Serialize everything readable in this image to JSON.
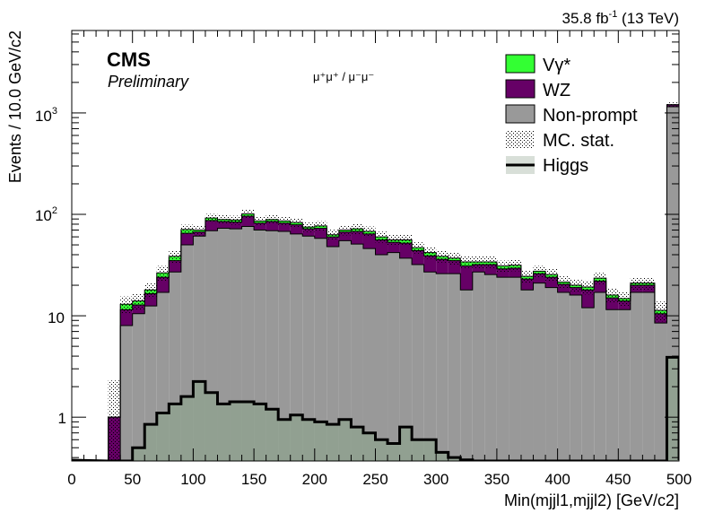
{
  "header": {
    "lumi_value": "35.8 fb",
    "lumi_exp": "-1",
    "energy": "(13 TeV)",
    "experiment": "CMS",
    "status": "Preliminary",
    "channel": "μ⁺μ⁺ /  μ⁻μ⁻"
  },
  "colors": {
    "vgamma": "#33ff33",
    "wz": "#660066",
    "nonprompt": "#999999",
    "higgs_fill": "#8fa38f",
    "higgs_line": "#000000",
    "frame": "#000000"
  },
  "chart_data": {
    "type": "bar",
    "stacked": true,
    "log_y": true,
    "xlabel": "Min(mjjl1,mjjl2) [GeV/c2]",
    "ylabel": "Events / 10.0 GeV/c2",
    "xlim": [
      0,
      500
    ],
    "ylim": [
      0.37,
      6500
    ],
    "bin_width": 10,
    "x_ticks": [
      "0",
      "50",
      "100",
      "150",
      "200",
      "250",
      "300",
      "350",
      "400",
      "450",
      "500"
    ],
    "y_ticks": [
      {
        "base": "1",
        "exp": ""
      },
      {
        "base": "10",
        "exp": ""
      },
      {
        "base": "10",
        "exp": "2"
      },
      {
        "base": "10",
        "exp": "3"
      }
    ],
    "legend_position": "top-right",
    "legend": [
      {
        "label": "Vγ*",
        "kind": "fill",
        "color_key": "vgamma"
      },
      {
        "label": "WZ",
        "kind": "fill",
        "color_key": "wz"
      },
      {
        "label": "Non-prompt",
        "kind": "fill",
        "color_key": "nonprompt"
      },
      {
        "label": "MC. stat.",
        "kind": "hatch",
        "color_key": "frame"
      },
      {
        "label": "Higgs",
        "kind": "line",
        "color_key": "higgs_line"
      }
    ],
    "bins_low": [
      30,
      40,
      50,
      60,
      70,
      80,
      90,
      100,
      110,
      120,
      130,
      140,
      150,
      160,
      170,
      180,
      190,
      200,
      210,
      220,
      230,
      240,
      250,
      260,
      270,
      280,
      290,
      300,
      310,
      320,
      330,
      340,
      350,
      360,
      370,
      380,
      390,
      400,
      410,
      420,
      430,
      440,
      450,
      460,
      470,
      480,
      490
    ],
    "series": [
      {
        "name": "Non-prompt",
        "values": [
          0.3,
          8.0,
          10.5,
          12.5,
          17.0,
          27.0,
          50.0,
          61.0,
          69.0,
          73.0,
          72.0,
          76.0,
          70.0,
          69.0,
          68.0,
          64.0,
          61.0,
          58.0,
          48.0,
          55.0,
          51.0,
          46.0,
          40.0,
          42.0,
          37.0,
          32.0,
          27.0,
          26.0,
          26.0,
          18.0,
          27.0,
          25.5,
          24.0,
          24.0,
          18.0,
          21.0,
          19.0,
          17.0,
          16.0,
          12.0,
          17.0,
          11.5,
          11.5,
          17.0,
          17.0,
          8.5,
          1150.0
        ]
      },
      {
        "name": "WZ",
        "values": [
          0.7,
          3.5,
          2.3,
          4.0,
          7.0,
          8.0,
          15.0,
          6.0,
          18.0,
          12.0,
          12.0,
          20.0,
          12.0,
          16.0,
          14.0,
          15.0,
          11.0,
          15.0,
          12.0,
          12.0,
          17.0,
          18.0,
          16.0,
          11.0,
          15.0,
          12.0,
          12.0,
          10.0,
          9.0,
          13.0,
          5.0,
          6.5,
          5.0,
          5.5,
          5.0,
          5.0,
          5.0,
          3.5,
          3.0,
          6.0,
          5.0,
          3.5,
          2.5,
          3.0,
          3.0,
          2.0,
          50.0
        ]
      },
      {
        "name": "Vγ*",
        "values": [
          0.0,
          1.5,
          1.2,
          1.5,
          2.5,
          3.5,
          6.0,
          3.0,
          5.0,
          4.0,
          4.0,
          5.0,
          4.0,
          4.0,
          4.0,
          4.0,
          3.0,
          4.0,
          3.0,
          3.0,
          4.0,
          4.0,
          4.0,
          3.0,
          4.0,
          3.0,
          3.0,
          2.5,
          2.0,
          3.0,
          2.0,
          2.0,
          2.0,
          2.0,
          1.5,
          1.5,
          1.5,
          1.0,
          1.0,
          1.2,
          1.5,
          1.0,
          0.8,
          1.0,
          1.0,
          0.8,
          10.0
        ]
      },
      {
        "name": "MC. stat.",
        "values": [
          1.3,
          2.5,
          2.5,
          3.0,
          4.5,
          5.5,
          8.0,
          8.0,
          9.0,
          9.0,
          9.0,
          10.0,
          9.0,
          9.0,
          9.0,
          8.5,
          8.0,
          8.5,
          7.5,
          8.0,
          8.5,
          8.0,
          7.5,
          7.0,
          7.0,
          6.0,
          5.5,
          5.0,
          5.0,
          4.5,
          4.5,
          4.5,
          4.0,
          4.0,
          3.5,
          3.5,
          3.5,
          3.0,
          3.0,
          3.0,
          3.0,
          2.5,
          2.5,
          3.0,
          3.0,
          2.5,
          60.0
        ]
      },
      {
        "name": "Higgs",
        "values": [
          0.3,
          0.3,
          0.5,
          0.85,
          1.1,
          1.35,
          1.6,
          2.25,
          1.75,
          1.35,
          1.42,
          1.42,
          1.35,
          1.2,
          0.95,
          1.05,
          0.95,
          0.9,
          0.85,
          0.95,
          0.8,
          0.7,
          0.6,
          0.55,
          0.8,
          0.6,
          0.6,
          0.45,
          0.4,
          0.38,
          0.36,
          0.36,
          0.35,
          0.34,
          0.34,
          0.33,
          0.33,
          0.33,
          0.33,
          0.33,
          0.33,
          0.33,
          0.33,
          0.33,
          0.33,
          0.33,
          3.9
        ]
      }
    ]
  }
}
